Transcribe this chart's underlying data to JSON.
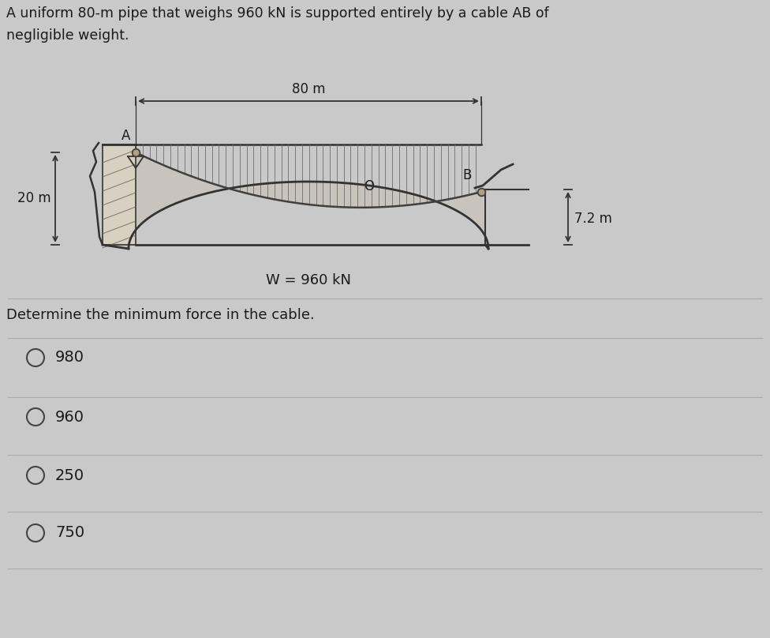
{
  "title_line1": "A uniform 80-m pipe that weighs 960 kN is supported entirely by a cable AB of",
  "title_line2": "negligible weight.",
  "question": "Determine the minimum force in the cable.",
  "choices": [
    "980",
    "960",
    "250",
    "750"
  ],
  "bg_color": "#c9c9c9",
  "diagram_span_label": "80 m",
  "left_height_label": "20 m",
  "right_height_label": "7.2 m",
  "weight_label": "W = 960 kN",
  "point_A": "A",
  "point_B": "B",
  "point_O": "O",
  "text_color": "#1a1a1a",
  "pipe_fill": "#c8c0b0",
  "wall_fill": "#d8d0c0",
  "cable_color": "#404040",
  "hatch_color": "#606060",
  "line_color": "#333333"
}
